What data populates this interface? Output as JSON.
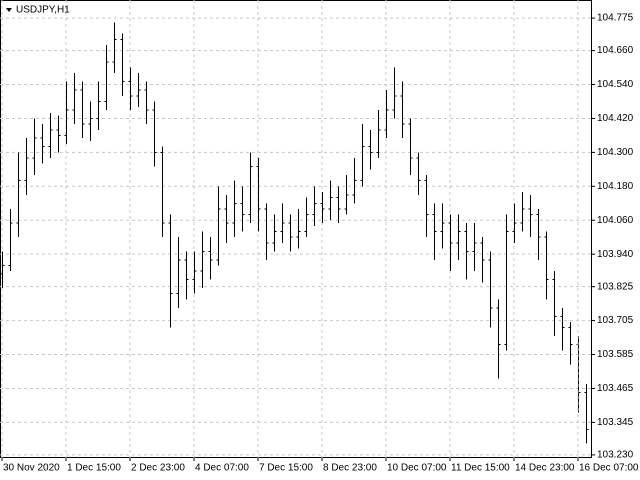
{
  "chart_data": {
    "type": "ohlc",
    "title": "USDJPY,H1",
    "color": "#000000",
    "grid": true,
    "ylim": [
      103.219,
      104.839
    ],
    "yticks": [
      {
        "value": 104.775,
        "label": "104.775"
      },
      {
        "value": 104.66,
        "label": "104.660"
      },
      {
        "value": 104.54,
        "label": "104.540"
      },
      {
        "value": 104.42,
        "label": "104.420"
      },
      {
        "value": 104.3,
        "label": "104.300"
      },
      {
        "value": 104.18,
        "label": "104.180"
      },
      {
        "value": 104.06,
        "label": "104.060"
      },
      {
        "value": 103.94,
        "label": "103.940"
      },
      {
        "value": 103.825,
        "label": "103.825"
      },
      {
        "value": 103.705,
        "label": "103.705"
      },
      {
        "value": 103.585,
        "label": "103.585"
      },
      {
        "value": 103.465,
        "label": "103.465"
      },
      {
        "value": 103.345,
        "label": "103.345"
      },
      {
        "value": 103.23,
        "label": "103.230"
      }
    ],
    "categories": [
      "30 Nov 2020",
      null,
      null,
      null,
      null,
      null,
      null,
      null,
      "1 Dec 15:00",
      null,
      null,
      null,
      null,
      null,
      null,
      null,
      "2 Dec 23:00",
      null,
      null,
      null,
      null,
      null,
      null,
      null,
      "4 Dec 07:00",
      null,
      null,
      null,
      null,
      null,
      null,
      null,
      "7 Dec 15:00",
      null,
      null,
      null,
      null,
      null,
      null,
      null,
      "8 Dec 23:00",
      null,
      null,
      null,
      null,
      null,
      null,
      null,
      "10 Dec 07:00",
      null,
      null,
      null,
      null,
      null,
      null,
      null,
      "11 Dec 15:00",
      null,
      null,
      null,
      null,
      null,
      null,
      null,
      "14 Dec 23:00",
      null,
      null,
      null,
      null,
      null,
      null,
      null,
      "16 Dec 07:00",
      null
    ],
    "open": [
      103.87,
      103.9,
      104.05,
      104.2,
      104.28,
      104.35,
      104.32,
      104.38,
      104.36,
      104.45,
      104.52,
      104.4,
      104.42,
      104.48,
      104.62,
      104.7,
      104.55,
      104.5,
      104.52,
      104.45,
      104.3,
      104.05,
      103.8,
      103.92,
      103.85,
      103.88,
      103.95,
      103.92,
      104.1,
      104.05,
      104.12,
      104.08,
      104.25,
      104.1,
      103.98,
      104.02,
      104.05,
      104.0,
      104.02,
      104.08,
      104.12,
      104.1,
      104.14,
      104.1,
      104.15,
      104.2,
      104.32,
      104.3,
      104.38,
      104.45,
      104.5,
      104.4,
      104.28,
      104.2,
      104.08,
      104.02,
      104.05,
      103.98,
      104.02,
      103.95,
      103.98,
      103.92,
      103.75,
      103.62,
      104.02,
      104.05,
      104.1,
      104.08,
      104.0,
      103.85,
      103.72,
      103.68,
      103.62,
      103.45
    ],
    "high": [
      103.95,
      104.1,
      104.3,
      104.35,
      104.42,
      104.4,
      104.44,
      104.43,
      104.55,
      104.58,
      104.55,
      104.48,
      104.55,
      104.68,
      104.76,
      104.72,
      104.6,
      104.58,
      104.55,
      104.48,
      104.32,
      104.08,
      104.0,
      103.95,
      103.95,
      104.02,
      104.0,
      104.18,
      104.15,
      104.2,
      104.18,
      104.3,
      104.28,
      104.12,
      104.08,
      104.12,
      104.08,
      104.1,
      104.14,
      104.18,
      104.16,
      104.2,
      104.18,
      104.22,
      104.28,
      104.4,
      104.38,
      104.45,
      104.52,
      104.6,
      104.55,
      104.42,
      104.3,
      104.22,
      104.12,
      104.12,
      104.08,
      104.08,
      104.05,
      104.05,
      104.0,
      103.95,
      103.78,
      104.08,
      104.12,
      104.16,
      104.15,
      104.1,
      104.02,
      103.88,
      103.75,
      103.7,
      103.65,
      103.48
    ],
    "low": [
      103.82,
      103.88,
      104.0,
      104.15,
      104.22,
      104.26,
      104.28,
      104.3,
      104.33,
      104.4,
      104.35,
      104.34,
      104.38,
      104.45,
      104.58,
      104.5,
      104.45,
      104.46,
      104.4,
      104.25,
      104.0,
      103.68,
      103.75,
      103.78,
      103.8,
      103.82,
      103.85,
      103.9,
      103.98,
      104.0,
      104.02,
      104.05,
      104.02,
      103.92,
      103.95,
      103.98,
      103.95,
      103.96,
      104.0,
      104.04,
      104.05,
      104.06,
      104.05,
      104.08,
      104.12,
      104.18,
      104.24,
      104.28,
      104.35,
      104.42,
      104.35,
      104.22,
      104.15,
      104.0,
      103.92,
      103.96,
      103.88,
      103.92,
      103.85,
      103.88,
      103.84,
      103.68,
      103.5,
      103.6,
      103.98,
      104.02,
      104.0,
      103.92,
      103.78,
      103.65,
      103.6,
      103.55,
      103.38,
      103.27
    ],
    "close": [
      103.9,
      104.05,
      104.2,
      104.28,
      104.35,
      104.32,
      104.38,
      104.36,
      104.45,
      104.52,
      104.4,
      104.42,
      104.48,
      104.62,
      104.7,
      104.55,
      104.5,
      104.52,
      104.45,
      104.3,
      104.05,
      103.8,
      103.92,
      103.85,
      103.88,
      103.95,
      103.92,
      104.1,
      104.05,
      104.12,
      104.08,
      104.25,
      104.1,
      103.98,
      104.02,
      104.05,
      104.0,
      104.02,
      104.08,
      104.12,
      104.1,
      104.14,
      104.1,
      104.15,
      104.2,
      104.32,
      104.3,
      104.38,
      104.45,
      104.5,
      104.4,
      104.28,
      104.2,
      104.08,
      104.02,
      104.05,
      103.98,
      104.02,
      103.95,
      103.98,
      103.92,
      103.75,
      103.62,
      104.02,
      104.05,
      104.1,
      104.08,
      104.0,
      103.85,
      103.72,
      103.68,
      103.62,
      103.45,
      103.32
    ]
  }
}
